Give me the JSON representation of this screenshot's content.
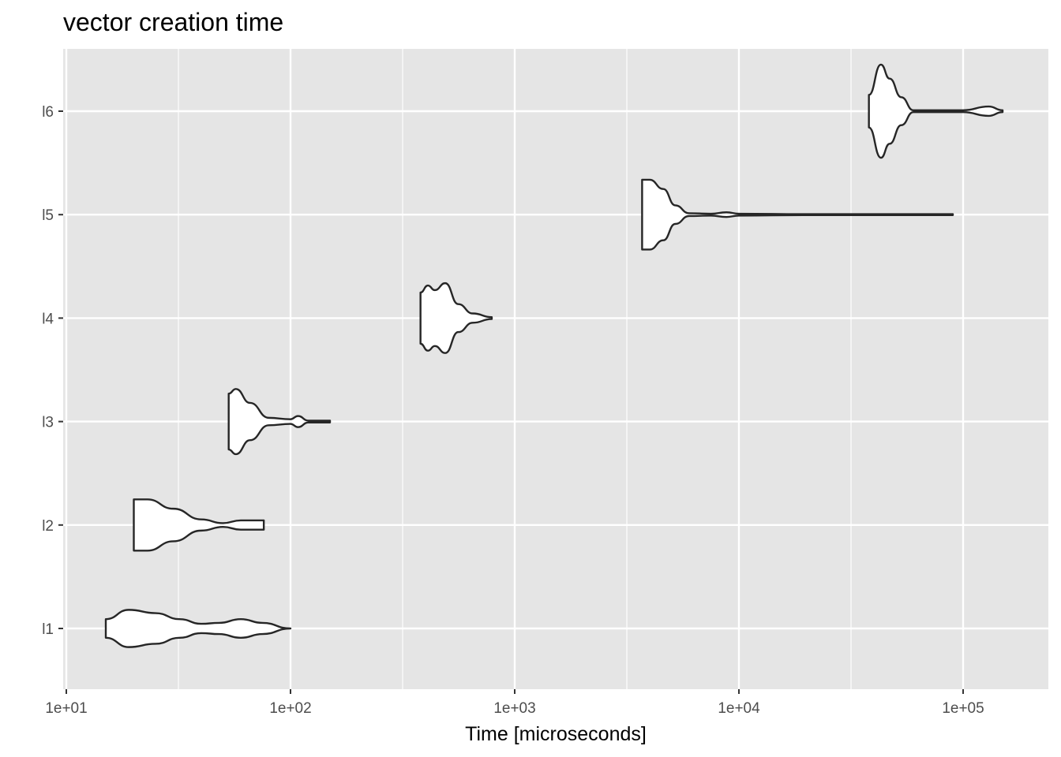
{
  "chart_data": {
    "type": "violin",
    "title": "vector creation time",
    "xlabel": "Time [microseconds]",
    "ylabel": "",
    "x_scale": "log10",
    "xlim": [
      10,
      240000
    ],
    "x_ticks": [
      {
        "value": 10,
        "label": "1e+01"
      },
      {
        "value": 100,
        "label": "1e+02"
      },
      {
        "value": 1000,
        "label": "1e+03"
      },
      {
        "value": 10000,
        "label": "1e+04"
      },
      {
        "value": 100000,
        "label": "1e+05"
      }
    ],
    "categories": [
      "l1",
      "l2",
      "l3",
      "l4",
      "l5",
      "l6"
    ],
    "grid": true,
    "colors": {
      "panel": "#e5e5e5",
      "grid": "#ffffff",
      "violin_fill": "#ffffff",
      "violin_stroke": "#262626"
    },
    "series": [
      {
        "category": "l1",
        "density": [
          [
            15,
            0.2
          ],
          [
            19,
            0.4
          ],
          [
            25,
            0.33
          ],
          [
            32,
            0.2
          ],
          [
            40,
            0.1
          ],
          [
            48,
            0.12
          ],
          [
            60,
            0.2
          ],
          [
            75,
            0.12
          ],
          [
            100,
            0.0
          ]
        ]
      },
      {
        "category": "l2",
        "density": [
          [
            20,
            0.55
          ],
          [
            23,
            0.55
          ],
          [
            30,
            0.35
          ],
          [
            40,
            0.12
          ],
          [
            50,
            0.04
          ],
          [
            60,
            0.1
          ],
          [
            76,
            0.1
          ]
        ]
      },
      {
        "category": "l3",
        "density": [
          [
            53,
            0.6
          ],
          [
            57,
            0.7
          ],
          [
            66,
            0.4
          ],
          [
            80,
            0.08
          ],
          [
            100,
            0.05
          ],
          [
            108,
            0.12
          ],
          [
            120,
            0.02
          ],
          [
            150,
            0.02
          ]
        ]
      },
      {
        "category": "l4",
        "density": [
          [
            380,
            0.55
          ],
          [
            410,
            0.7
          ],
          [
            440,
            0.6
          ],
          [
            490,
            0.75
          ],
          [
            560,
            0.3
          ],
          [
            650,
            0.1
          ],
          [
            790,
            0.02
          ]
        ]
      },
      {
        "category": "l5",
        "density": [
          [
            3700,
            0.75
          ],
          [
            4000,
            0.75
          ],
          [
            4600,
            0.55
          ],
          [
            5200,
            0.2
          ],
          [
            6000,
            0.03
          ],
          [
            7500,
            0.02
          ],
          [
            8800,
            0.05
          ],
          [
            10000,
            0.02
          ],
          [
            20000,
            0.01
          ],
          [
            90000,
            0.01
          ]
        ]
      },
      {
        "category": "l6",
        "density": [
          [
            38000,
            0.35
          ],
          [
            43000,
            1.0
          ],
          [
            47000,
            0.7
          ],
          [
            53000,
            0.3
          ],
          [
            60000,
            0.02
          ],
          [
            100000,
            0.02
          ],
          [
            130000,
            0.1
          ],
          [
            150000,
            0.02
          ]
        ]
      }
    ]
  }
}
